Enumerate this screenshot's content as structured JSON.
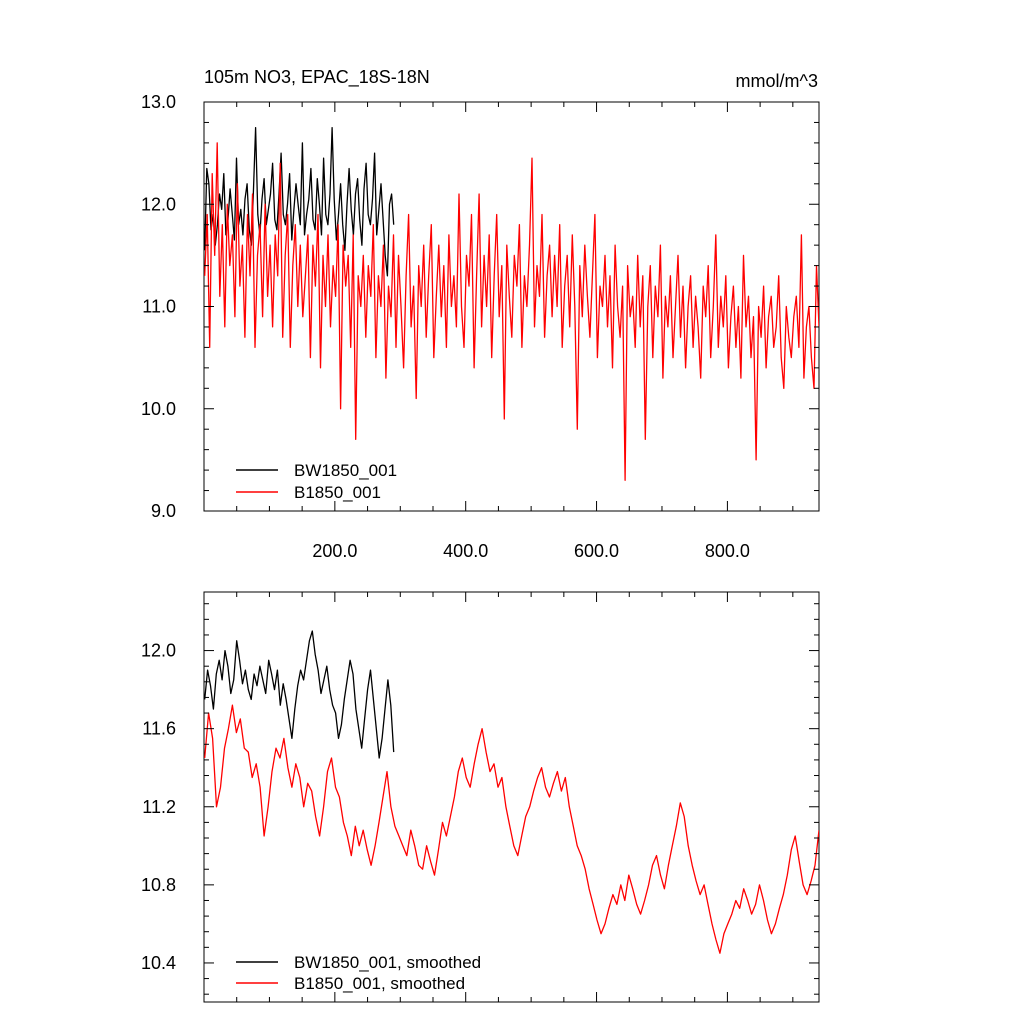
{
  "chart_data": [
    {
      "type": "line",
      "title": "105m NO3, EPAC_18S-18N",
      "units": "mmol/m^3",
      "xlim": [
        0,
        940
      ],
      "ylim": [
        9.0,
        13.0
      ],
      "yticks": [
        9.0,
        10.0,
        11.0,
        12.0,
        13.0
      ],
      "ytick_labels": [
        "9.0",
        "10.0",
        "11.0",
        "12.0",
        "13.0"
      ],
      "xticks": [
        200,
        400,
        600,
        800
      ],
      "xtick_labels": [
        "200.0",
        "400.0",
        "600.0",
        "800.0"
      ],
      "grid": false,
      "legend_position": "bottom-left",
      "series": [
        {
          "name": "BW1850_001",
          "color": "#000000",
          "x_start": 1,
          "x_end": 290,
          "values": [
            11.55,
            12.35,
            12.2,
            11.75,
            11.9,
            11.6,
            11.8,
            12.1,
            11.95,
            12.3,
            11.7,
            11.85,
            12.15,
            11.9,
            11.65,
            12.45,
            11.8,
            11.95,
            11.7,
            12.05,
            12.2,
            11.75,
            11.6,
            12.15,
            12.75,
            11.9,
            11.7,
            12.05,
            12.25,
            11.8,
            11.95,
            12.1,
            12.4,
            11.85,
            11.75,
            12.1,
            12.5,
            11.9,
            11.8,
            12.0,
            12.3,
            11.65,
            11.95,
            12.2,
            12.0,
            11.8,
            12.6,
            11.7,
            11.9,
            12.05,
            12.35,
            11.85,
            11.75,
            12.25,
            12.0,
            11.7,
            12.45,
            11.9,
            11.8,
            12.1,
            12.75,
            12.05,
            11.65,
            11.9,
            12.2,
            11.8,
            11.55,
            12.0,
            12.35,
            11.95,
            11.7,
            12.1,
            12.25,
            11.85,
            11.6,
            12.15,
            12.4,
            11.9,
            11.8,
            12.05,
            12.5,
            11.7,
            11.95,
            12.2,
            11.85,
            11.5,
            11.3,
            12.0,
            12.1,
            11.8
          ]
        },
        {
          "name": "B1850_001",
          "color": "#ff0000",
          "x_start": 1,
          "x_end": 940,
          "values": [
            11.3,
            11.9,
            10.6,
            12.3,
            11.5,
            12.6,
            11.1,
            11.8,
            10.8,
            12.0,
            11.4,
            11.7,
            10.9,
            12.2,
            11.2,
            11.6,
            10.7,
            11.9,
            11.3,
            12.1,
            10.6,
            11.5,
            11.8,
            10.9,
            12.0,
            11.1,
            11.6,
            10.8,
            11.7,
            11.3,
            12.4,
            10.7,
            11.5,
            11.9,
            10.6,
            11.4,
            11.8,
            11.0,
            11.6,
            10.9,
            11.3,
            11.7,
            10.5,
            11.6,
            11.2,
            11.9,
            10.4,
            11.5,
            11.0,
            11.7,
            10.8,
            11.4,
            11.1,
            11.8,
            10.0,
            11.6,
            11.2,
            11.5,
            10.6,
            11.7,
            9.7,
            11.3,
            11.0,
            11.5,
            10.7,
            11.4,
            11.1,
            11.8,
            10.5,
            11.3,
            11.0,
            11.6,
            10.3,
            11.2,
            10.9,
            11.7,
            10.6,
            11.5,
            11.0,
            10.4,
            11.3,
            11.9,
            10.8,
            11.2,
            10.1,
            11.4,
            11.0,
            11.6,
            10.7,
            11.3,
            11.8,
            10.5,
            11.1,
            11.6,
            10.9,
            11.4,
            10.6,
            11.7,
            11.0,
            11.3,
            10.8,
            12.1,
            11.0,
            10.6,
            11.5,
            11.2,
            11.9,
            10.4,
            11.3,
            12.1,
            10.8,
            11.5,
            11.0,
            11.7,
            10.5,
            11.3,
            11.9,
            10.9,
            11.4,
            9.9,
            11.6,
            11.1,
            10.7,
            11.5,
            11.2,
            11.8,
            10.6,
            11.3,
            11.0,
            11.6,
            12.45,
            10.8,
            11.4,
            11.1,
            11.9,
            10.7,
            11.3,
            11.6,
            10.9,
            11.5,
            11.0,
            11.8,
            10.6,
            11.2,
            11.5,
            10.8,
            11.7,
            11.0,
            9.8,
            11.4,
            10.9,
            11.6,
            11.1,
            10.7,
            11.3,
            11.9,
            10.5,
            11.2,
            11.0,
            11.5,
            10.8,
            11.3,
            10.4,
            11.6,
            11.0,
            10.7,
            11.2,
            9.3,
            11.4,
            10.9,
            11.1,
            10.6,
            11.5,
            10.8,
            11.3,
            9.7,
            11.0,
            11.4,
            10.5,
            11.2,
            10.9,
            11.6,
            10.3,
            11.1,
            10.8,
            11.3,
            10.5,
            11.0,
            11.5,
            10.7,
            11.2,
            10.4,
            11.0,
            11.3,
            10.6,
            11.1,
            10.8,
            10.3,
            11.2,
            10.9,
            11.4,
            10.5,
            11.0,
            11.7,
            10.6,
            11.1,
            10.8,
            11.3,
            10.4,
            10.9,
            11.2,
            10.6,
            11.0,
            10.3,
            11.5,
            10.8,
            11.1,
            10.5,
            10.9,
            9.5,
            11.0,
            10.7,
            11.2,
            10.4,
            10.9,
            11.1,
            10.6,
            10.8,
            11.3,
            10.5,
            10.2,
            11.0,
            10.7,
            10.5,
            10.9,
            11.1,
            10.6,
            11.7,
            10.3,
            10.8,
            11.0,
            10.5,
            10.2,
            11.4,
            10.8
          ]
        }
      ],
      "legend": [
        {
          "name": "BW1850_001",
          "color": "#000000"
        },
        {
          "name": "B1850_001",
          "color": "#ff0000"
        }
      ]
    },
    {
      "type": "line",
      "title": "",
      "xlim": [
        0,
        940
      ],
      "ylim": [
        10.2,
        12.3
      ],
      "yticks": [
        10.4,
        10.8,
        11.2,
        11.6,
        12.0
      ],
      "ytick_labels": [
        "10.4",
        "10.8",
        "11.2",
        "11.6",
        "12.0"
      ],
      "xticks": [
        200,
        400,
        600,
        800
      ],
      "xtick_labels": [],
      "grid": false,
      "legend_position": "bottom-left",
      "series": [
        {
          "name": "BW1850_001, smoothed",
          "color": "#000000",
          "x_start": 1,
          "x_end": 290,
          "values": [
            11.75,
            11.9,
            11.82,
            11.7,
            11.88,
            11.95,
            11.85,
            12.0,
            11.92,
            11.78,
            11.85,
            12.05,
            11.95,
            11.83,
            11.9,
            11.8,
            11.75,
            11.88,
            11.82,
            11.92,
            11.85,
            11.78,
            11.95,
            11.88,
            11.8,
            11.9,
            11.72,
            11.83,
            11.75,
            11.65,
            11.55,
            11.7,
            11.82,
            11.9,
            11.85,
            11.95,
            12.05,
            12.1,
            11.98,
            11.9,
            11.78,
            11.85,
            11.92,
            11.8,
            11.72,
            11.68,
            11.55,
            11.62,
            11.75,
            11.85,
            11.95,
            11.88,
            11.7,
            11.6,
            11.5,
            11.65,
            11.8,
            11.9,
            11.75,
            11.6,
            11.45,
            11.55,
            11.7,
            11.85,
            11.72,
            11.48
          ]
        },
        {
          "name": "B1850_001, smoothed",
          "color": "#ff0000",
          "x_start": 1,
          "x_end": 940,
          "values": [
            11.45,
            11.68,
            11.55,
            11.2,
            11.3,
            11.5,
            11.6,
            11.72,
            11.58,
            11.65,
            11.5,
            11.48,
            11.35,
            11.42,
            11.3,
            11.05,
            11.2,
            11.38,
            11.5,
            11.45,
            11.55,
            11.4,
            11.3,
            11.42,
            11.35,
            11.2,
            11.32,
            11.28,
            11.15,
            11.05,
            11.2,
            11.38,
            11.45,
            11.3,
            11.25,
            11.12,
            11.05,
            10.95,
            11.1,
            11.0,
            11.08,
            10.98,
            10.9,
            11.0,
            11.12,
            11.25,
            11.38,
            11.2,
            11.1,
            11.05,
            11.0,
            10.95,
            11.08,
            11.0,
            10.9,
            10.88,
            11.0,
            10.92,
            10.85,
            10.98,
            11.12,
            11.05,
            11.15,
            11.25,
            11.38,
            11.45,
            11.35,
            11.3,
            11.42,
            11.52,
            11.6,
            11.48,
            11.38,
            11.42,
            11.3,
            11.35,
            11.2,
            11.1,
            11.0,
            10.95,
            11.05,
            11.15,
            11.2,
            11.28,
            11.35,
            11.4,
            11.3,
            11.25,
            11.32,
            11.38,
            11.28,
            11.35,
            11.2,
            11.1,
            11.0,
            10.95,
            10.88,
            10.78,
            10.7,
            10.62,
            10.55,
            10.6,
            10.68,
            10.75,
            10.7,
            10.8,
            10.72,
            10.85,
            10.78,
            10.7,
            10.65,
            10.72,
            10.8,
            10.9,
            10.95,
            10.85,
            10.78,
            10.9,
            11.0,
            11.1,
            11.22,
            11.15,
            11.0,
            10.9,
            10.82,
            10.75,
            10.8,
            10.7,
            10.6,
            10.52,
            10.45,
            10.55,
            10.6,
            10.65,
            10.72,
            10.68,
            10.78,
            10.72,
            10.65,
            10.7,
            10.8,
            10.72,
            10.62,
            10.55,
            10.6,
            10.68,
            10.75,
            10.85,
            10.98,
            11.05,
            10.92,
            10.8,
            10.75,
            10.82,
            10.9,
            11.08
          ]
        }
      ],
      "legend": [
        {
          "name": "BW1850_001, smoothed",
          "color": "#000000"
        },
        {
          "name": "B1850_001, smoothed",
          "color": "#ff0000"
        }
      ]
    }
  ]
}
